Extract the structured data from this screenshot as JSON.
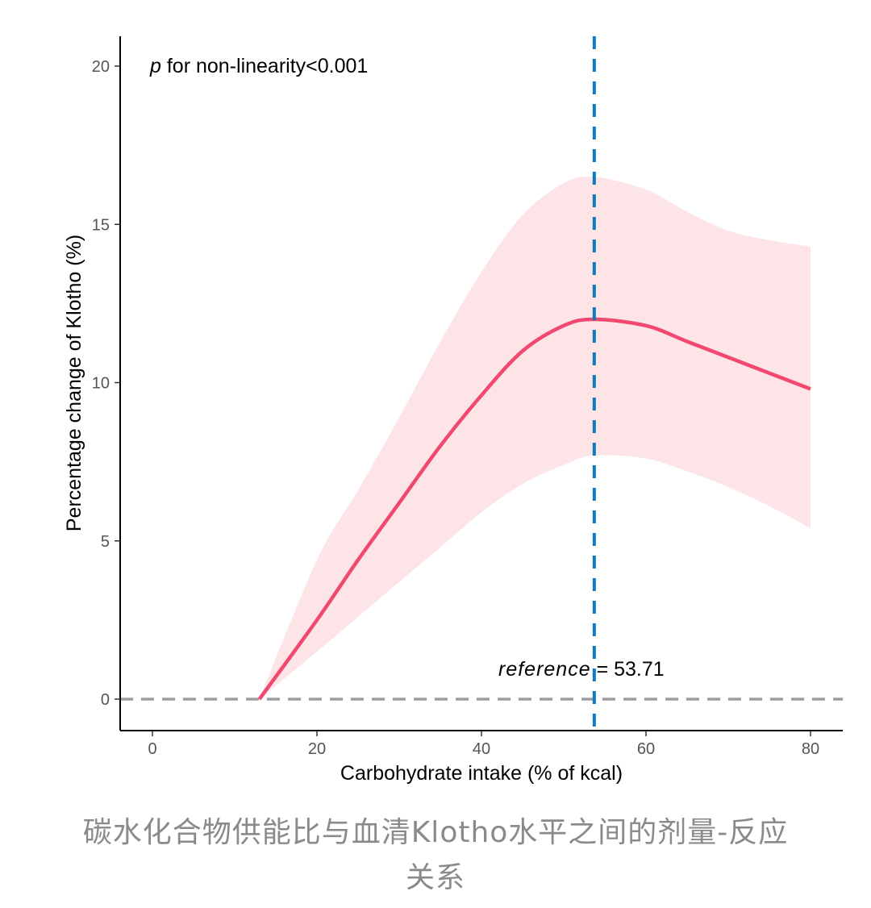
{
  "chart_data": {
    "type": "line",
    "xlabel": "Carbohydrate intake (% of kcal)",
    "ylabel": "Percentage change of Klotho (%)",
    "xlim": [
      -4,
      84
    ],
    "ylim": [
      -1,
      21
    ],
    "xticks": [
      0,
      20,
      40,
      60,
      80
    ],
    "yticks": [
      0,
      5,
      10,
      15,
      20
    ],
    "grid": false,
    "annotation_p_italic": "p",
    "annotation_p_rest": " for non-linearity<0.001",
    "reference_label_italic": "reference",
    "reference_label_rest": " = 53.71",
    "reference_x": 53.71,
    "baseline_y": 0,
    "series": [
      {
        "x": [
          13,
          20,
          25,
          30,
          35,
          40,
          45,
          50,
          53.71,
          60,
          65,
          70,
          75,
          80
        ],
        "y": [
          0,
          2.5,
          4.4,
          6.2,
          8.0,
          9.6,
          11.0,
          11.8,
          12.0,
          11.8,
          11.3,
          10.8,
          10.3,
          9.8
        ],
        "lower": [
          0,
          1.5,
          2.6,
          3.7,
          4.8,
          5.9,
          6.8,
          7.4,
          7.7,
          7.6,
          7.2,
          6.7,
          6.1,
          5.4
        ],
        "upper": [
          0,
          4.4,
          6.6,
          8.9,
          11.3,
          13.5,
          15.3,
          16.3,
          16.5,
          16.1,
          15.4,
          14.8,
          14.5,
          14.3
        ]
      }
    ],
    "colors": {
      "line": "#f2476f",
      "ribbon": "#fde4e7",
      "reference": "#0a7bbf",
      "baseline": "#9e9e9e"
    }
  },
  "caption": {
    "line1": "碳水化合物供能比与血清Klotho水平之间的剂量-反应",
    "line2": "关系"
  }
}
